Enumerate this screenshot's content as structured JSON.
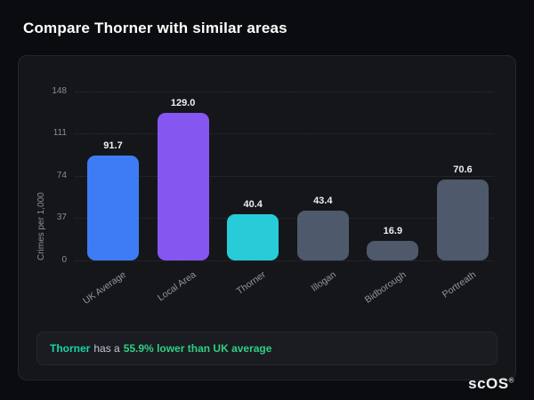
{
  "page": {
    "title": "Compare Thorner with similar areas"
  },
  "chart_data": {
    "type": "bar",
    "title": "",
    "xlabel": "",
    "ylabel": "Crimes per 1,000",
    "categories": [
      "UK Average",
      "Local Area",
      "Thorner",
      "Illogan",
      "Bidborough",
      "Portreath"
    ],
    "values": [
      91.7,
      129.0,
      40.4,
      43.4,
      16.9,
      70.6
    ],
    "bar_colors": [
      "#3e7cf5",
      "#8656f0",
      "#27ccd8",
      "#4e596c",
      "#4e596c",
      "#4e596c"
    ],
    "yticks": [
      0,
      37,
      74,
      111,
      148
    ],
    "ylim": [
      0,
      148
    ],
    "grid": "horizontal-dotted",
    "legend_position": "none"
  },
  "insight": {
    "area_name": "Thorner",
    "middle_text": "has a",
    "highlight_text": "55.9% lower than UK average"
  },
  "logo": {
    "text": "scOS",
    "mark": "®"
  },
  "colors": {
    "background": "#0b0c0f",
    "card_background": "#15161a",
    "accent_blue": "#3e7cf5",
    "accent_purple": "#8656f0",
    "accent_teal": "#27ccd8",
    "neutral_bar": "#4e596c",
    "positive_green": "#2fce84"
  }
}
